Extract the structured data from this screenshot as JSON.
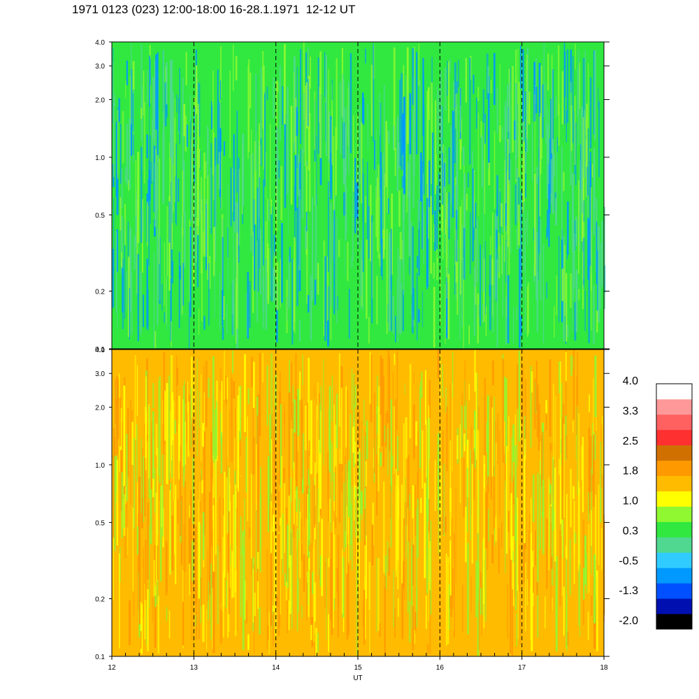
{
  "title": "1971 0123 (023) 12:00-18:00 16-28.1.1971  12-12 UT",
  "colors": {
    "colorbar": [
      "#000000",
      "#0010b0",
      "#0050ff",
      "#0099ff",
      "#30ccff",
      "#50d890",
      "#30e840",
      "#90f830",
      "#ffff00",
      "#ffbb00",
      "#ff9900",
      "#d07000",
      "#ff3030",
      "#ff6060",
      "#ff9898",
      "#ffffff"
    ]
  },
  "chart_data": [
    {
      "type": "heatmap",
      "panel": "top",
      "x_ticks": [
        "12",
        "13",
        "14",
        "15",
        "16",
        "17",
        "18"
      ],
      "y_ticks": [
        "0.1",
        "0.2",
        "0.5",
        "1.0",
        "2.0",
        "3.0",
        "4.0"
      ],
      "xlim": [
        12,
        18
      ],
      "ylim": [
        0.1,
        4.0
      ],
      "y_scale": "log",
      "vlines_dashed": [
        13,
        14,
        15,
        16,
        17
      ],
      "dominant_colors": [
        "#30e840",
        "#50d890",
        "#90f830",
        "#0099ff"
      ]
    },
    {
      "type": "heatmap",
      "panel": "bottom",
      "x_ticks": [
        "12",
        "13",
        "14",
        "15",
        "16",
        "17",
        "18"
      ],
      "y_ticks": [
        "0.1",
        "0.2",
        "0.5",
        "1.0",
        "2.0",
        "3.0",
        "4.0"
      ],
      "xlim": [
        12,
        18
      ],
      "ylim": [
        0.1,
        4.0
      ],
      "y_scale": "log",
      "vlines_dashed": [
        13,
        14,
        15,
        16,
        17
      ],
      "dominant_colors": [
        "#ffbb00",
        "#ff9900",
        "#ffff00",
        "#90f830"
      ]
    }
  ],
  "x_axis": {
    "labels": [
      "12",
      "13",
      "14",
      "15",
      "16",
      "17",
      "18"
    ],
    "title": "UT"
  },
  "colorbar": {
    "labels": [
      "4.0",
      "3.3",
      "2.5",
      "1.8",
      "1.0",
      "0.3",
      "-0.5",
      "-1.3",
      "-2.0"
    ]
  }
}
